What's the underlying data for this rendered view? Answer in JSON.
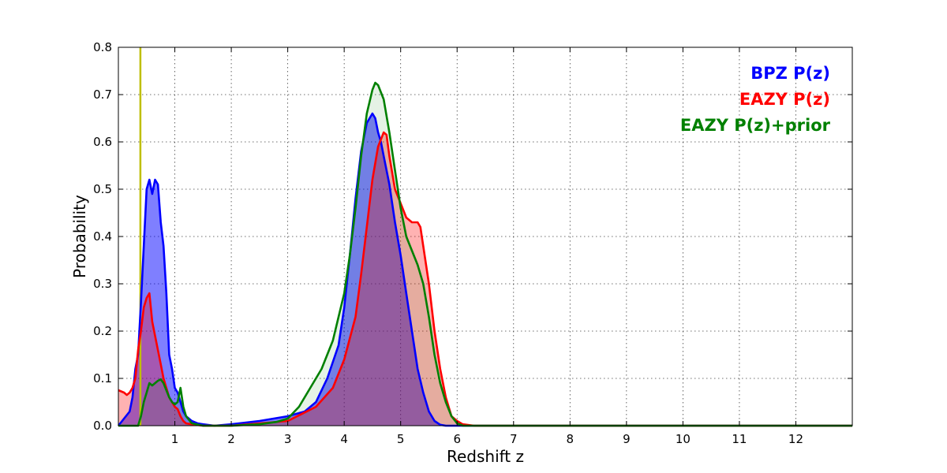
{
  "chart_data": {
    "type": "area",
    "xlabel": "Redshift z",
    "ylabel": "Probability",
    "xlim": [
      0,
      13
    ],
    "ylim": [
      0,
      0.8
    ],
    "x_ticks": [
      1,
      2,
      3,
      4,
      5,
      6,
      7,
      8,
      9,
      10,
      11,
      12
    ],
    "y_ticks": [
      0.0,
      0.1,
      0.2,
      0.3,
      0.4,
      0.5,
      0.6,
      0.7,
      0.8
    ],
    "grid": true,
    "legend_position": "top-right",
    "vertical_line": {
      "x": 0.39,
      "color": "#bfbf00"
    },
    "series": [
      {
        "name": "BPZ P(z)",
        "color": "#0000ff",
        "fill": "#0000ff",
        "fill_opacity": 0.5,
        "x": [
          0.0,
          0.2,
          0.25,
          0.3,
          0.35,
          0.4,
          0.45,
          0.5,
          0.55,
          0.6,
          0.65,
          0.7,
          0.75,
          0.8,
          0.85,
          0.9,
          0.95,
          1.0,
          1.05,
          1.1,
          1.15,
          1.2,
          1.25,
          1.3,
          1.4,
          1.5,
          1.7,
          2.0,
          2.5,
          3.0,
          3.3,
          3.5,
          3.7,
          3.9,
          4.0,
          4.1,
          4.2,
          4.3,
          4.4,
          4.5,
          4.55,
          4.6,
          4.65,
          4.7,
          4.8,
          4.9,
          5.0,
          5.1,
          5.2,
          5.3,
          5.4,
          5.5,
          5.6,
          5.7,
          5.8,
          5.9,
          6.0,
          6.2,
          13.0
        ],
        "y": [
          0.0,
          0.03,
          0.06,
          0.12,
          0.15,
          0.26,
          0.38,
          0.5,
          0.52,
          0.49,
          0.52,
          0.51,
          0.43,
          0.38,
          0.28,
          0.15,
          0.12,
          0.08,
          0.07,
          0.05,
          0.03,
          0.02,
          0.015,
          0.01,
          0.005,
          0.003,
          0.0,
          0.003,
          0.01,
          0.02,
          0.03,
          0.05,
          0.1,
          0.17,
          0.25,
          0.36,
          0.48,
          0.58,
          0.64,
          0.66,
          0.65,
          0.62,
          0.6,
          0.57,
          0.51,
          0.43,
          0.36,
          0.28,
          0.2,
          0.12,
          0.07,
          0.03,
          0.01,
          0.002,
          0.0,
          0.0,
          0.0,
          0.0,
          0.0
        ]
      },
      {
        "name": "EAZY P(z)",
        "color": "#ff0000",
        "fill": "#ff0000",
        "fill_opacity": 0.3,
        "x": [
          0.0,
          0.1,
          0.15,
          0.2,
          0.25,
          0.3,
          0.35,
          0.4,
          0.45,
          0.5,
          0.55,
          0.6,
          0.65,
          0.7,
          0.75,
          0.8,
          0.85,
          0.9,
          0.95,
          1.0,
          1.05,
          1.1,
          1.15,
          1.2,
          1.3,
          1.5,
          2.0,
          3.0,
          3.5,
          3.8,
          4.0,
          4.2,
          4.3,
          4.4,
          4.5,
          4.6,
          4.7,
          4.75,
          4.8,
          4.9,
          5.0,
          5.1,
          5.2,
          5.3,
          5.35,
          5.4,
          5.5,
          5.6,
          5.7,
          5.8,
          5.9,
          6.0,
          6.1,
          6.3,
          13.0
        ],
        "y": [
          0.075,
          0.07,
          0.065,
          0.07,
          0.08,
          0.1,
          0.16,
          0.2,
          0.25,
          0.27,
          0.28,
          0.22,
          0.19,
          0.16,
          0.13,
          0.1,
          0.08,
          0.06,
          0.05,
          0.04,
          0.035,
          0.02,
          0.01,
          0.005,
          0.003,
          0.0,
          0.0,
          0.01,
          0.04,
          0.08,
          0.14,
          0.23,
          0.32,
          0.42,
          0.52,
          0.59,
          0.62,
          0.615,
          0.57,
          0.5,
          0.47,
          0.44,
          0.43,
          0.43,
          0.42,
          0.38,
          0.3,
          0.2,
          0.12,
          0.06,
          0.02,
          0.01,
          0.003,
          0.0,
          0.0
        ]
      },
      {
        "name": "EAZY P(z)+prior",
        "color": "#008000",
        "fill": "#008000",
        "fill_opacity": 0.1,
        "x": [
          0.0,
          0.35,
          0.4,
          0.45,
          0.5,
          0.55,
          0.6,
          0.65,
          0.7,
          0.75,
          0.8,
          0.85,
          0.9,
          0.95,
          1.0,
          1.05,
          1.1,
          1.15,
          1.2,
          1.3,
          1.5,
          2.0,
          2.5,
          2.8,
          3.0,
          3.2,
          3.4,
          3.6,
          3.8,
          4.0,
          4.1,
          4.2,
          4.3,
          4.4,
          4.5,
          4.55,
          4.6,
          4.7,
          4.8,
          4.9,
          5.0,
          5.1,
          5.2,
          5.3,
          5.4,
          5.5,
          5.6,
          5.7,
          5.8,
          5.9,
          6.0,
          6.1,
          6.3,
          13.0
        ],
        "y": [
          0.0,
          0.0,
          0.02,
          0.05,
          0.07,
          0.09,
          0.085,
          0.09,
          0.095,
          0.098,
          0.09,
          0.075,
          0.06,
          0.05,
          0.045,
          0.05,
          0.08,
          0.04,
          0.02,
          0.005,
          0.0,
          0.0,
          0.003,
          0.008,
          0.015,
          0.04,
          0.08,
          0.12,
          0.18,
          0.28,
          0.36,
          0.46,
          0.57,
          0.66,
          0.71,
          0.725,
          0.72,
          0.69,
          0.62,
          0.54,
          0.46,
          0.4,
          0.37,
          0.34,
          0.3,
          0.23,
          0.15,
          0.09,
          0.05,
          0.02,
          0.005,
          0.0,
          0.0,
          0.0
        ]
      }
    ]
  }
}
